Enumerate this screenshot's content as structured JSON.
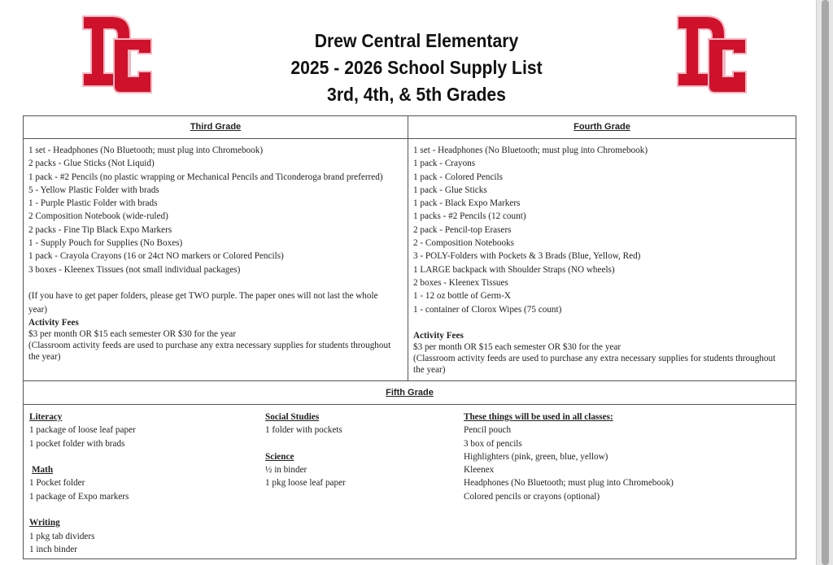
{
  "header": {
    "title_line1": "Drew Central Elementary",
    "title_line2": "2025 - 2026 School Supply List",
    "title_line3": "3rd, 4th, & 5th Grades",
    "logo_text": "DC",
    "logo_color": "#d0112b"
  },
  "third_grade": {
    "heading": "Third Grade",
    "items": [
      "1 set - Headphones (No Bluetooth; must plug into Chromebook)",
      "2 packs - Glue Sticks (Not Liquid)",
      "1 pack - #2 Pencils (no plastic wrapping or Mechanical Pencils and Ticonderoga brand preferred)",
      "5 - Yellow Plastic Folder with brads",
      "1 - Purple Plastic Folder with brads",
      "2 Composition Notebook (wide-ruled)",
      "2 packs - Fine Tip Black Expo Markers",
      "1 - Supply Pouch for Supplies (No Boxes)",
      "1 pack - Crayola Crayons (16 or 24ct NO markers or Colored Pencils)",
      "3 boxes - Kleenex Tissues (not small individual packages)"
    ],
    "note": "(If you have to get paper folders, please get TWO purple. The paper ones will not last the whole year)",
    "fees_heading": "Activity Fees",
    "fees": "$3 per month OR $15 each semester OR $30 for the year",
    "fees_note": "(Classroom activity feeds are used to purchase any extra necessary supplies for students throughout the year)"
  },
  "fourth_grade": {
    "heading": "Fourth Grade",
    "items": [
      "1 set - Headphones (No Bluetooth; must plug into Chromebook)",
      "1 pack - Crayons",
      "1 pack - Colored Pencils",
      "1 pack - Glue Sticks",
      "1 pack - Black Expo Markers",
      "1 packs - #2 Pencils (12 count)",
      "2 pack - Pencil-top Erasers",
      "2 - Composition Notebooks",
      "3 - POLY-Folders with Pockets & 3 Brads (Blue, Yellow, Red)",
      "1 LARGE backpack with Shoulder Straps (NO wheels)",
      "2 boxes - Kleenex Tissues",
      "1 - 12 oz bottle of Germ-X",
      "1 - container of Clorox Wipes (75 count)"
    ],
    "fees_heading": "Activity Fees",
    "fees": "$3 per month OR $15 each semester OR $30 for the year",
    "fees_note": "(Classroom activity feeds are used to purchase any extra necessary supplies for students throughout the year)"
  },
  "fifth_grade": {
    "heading": "Fifth Grade",
    "literacy": {
      "heading": "Literacy",
      "items": [
        "1 package of loose leaf paper",
        "1 pocket folder with brads"
      ]
    },
    "math": {
      "heading": "Math",
      "items": [
        "1 Pocket folder",
        "1 package of Expo markers"
      ]
    },
    "writing": {
      "heading": "Writing",
      "items": [
        "1 pkg tab dividers",
        "1 inch binder"
      ]
    },
    "social_studies": {
      "heading": "Social Studies",
      "items": [
        "1 folder with pockets"
      ]
    },
    "science": {
      "heading": "Science",
      "items": [
        "½ in binder",
        "1 pkg loose leaf paper"
      ]
    },
    "all_classes": {
      "heading": "These things will be used in all classes:",
      "items": [
        "Pencil pouch",
        "3 box of pencils",
        "Highlighters (pink, green, blue, yellow)",
        "Kleenex",
        "Headphones (No Bluetooth; must plug into Chromebook)",
        "Colored pencils or crayons (optional)"
      ]
    }
  }
}
